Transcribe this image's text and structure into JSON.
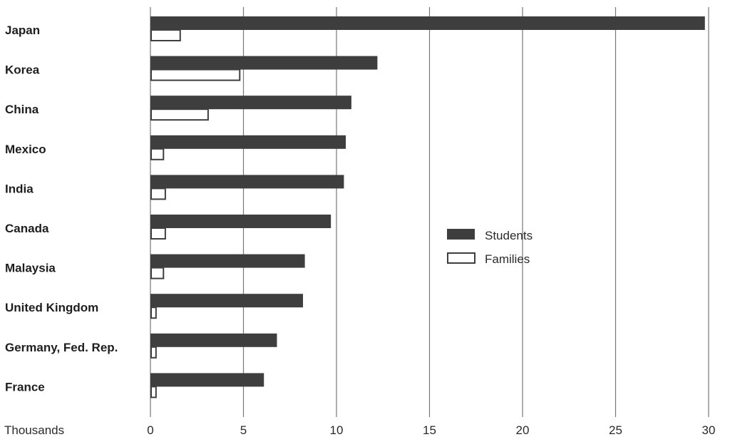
{
  "chart_data": {
    "type": "bar",
    "orientation": "horizontal",
    "categories": [
      "Japan",
      "Korea",
      "China",
      "Mexico",
      "India",
      "Canada",
      "Malaysia",
      "United Kingdom",
      "Germany, Fed. Rep.",
      "France"
    ],
    "series": [
      {
        "name": "Students",
        "values": [
          29.8,
          12.2,
          10.8,
          10.5,
          10.4,
          9.7,
          8.3,
          8.2,
          6.8,
          6.1
        ],
        "color": "#3e3e3e",
        "fill": "solid"
      },
      {
        "name": "Families",
        "values": [
          1.6,
          4.8,
          3.1,
          0.7,
          0.8,
          0.8,
          0.7,
          0.3,
          0.3,
          0.3
        ],
        "color": "#3e3e3e",
        "fill": "outline"
      }
    ],
    "xlim": [
      0,
      30
    ],
    "xticks": [
      0,
      5,
      10,
      15,
      20,
      25,
      30
    ],
    "xlabel": "Thousands",
    "ylabel": "",
    "title": "",
    "grid": "vertical",
    "legend_position": "right-center"
  }
}
